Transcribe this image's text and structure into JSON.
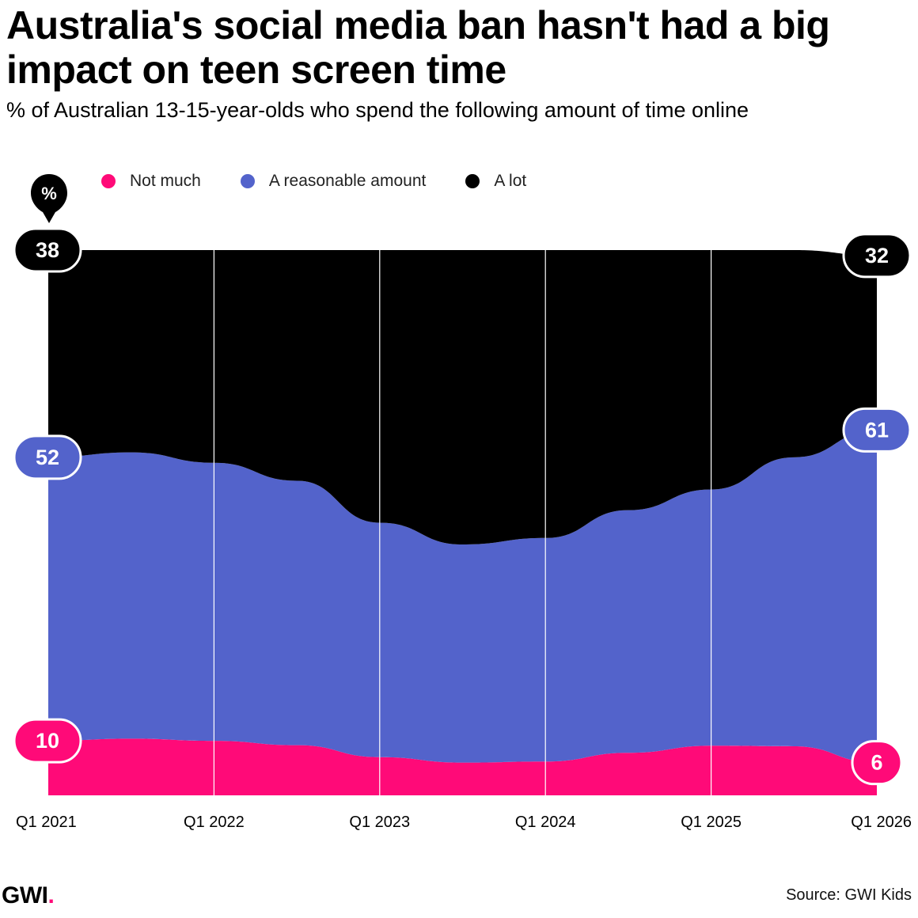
{
  "title": "Australia's social media ban hasn't had a big impact on teen screen time",
  "subtitle": "% of Australian 13-15-year-olds who spend the following amount of time online",
  "unit_badge": "%",
  "colors": {
    "not_much": "#ff0a78",
    "reasonable": "#5363cb",
    "a_lot": "#000000",
    "gridline": "#ffffff"
  },
  "chart_data": {
    "type": "area",
    "stacked": true,
    "ylim": [
      0,
      100
    ],
    "categories": [
      "Q1 2021",
      "Q1 2022",
      "Q1 2023",
      "Q1 2024",
      "Q1 2025",
      "Q1 2026"
    ],
    "x": [
      0,
      0.5,
      1,
      1.5,
      2,
      2.5,
      3,
      3.5,
      4,
      4.5,
      5
    ],
    "series": [
      {
        "key": "not_much",
        "name": "Not much",
        "values": [
          10,
          10.4,
          10,
          9.2,
          7.0,
          6.0,
          6.2,
          7.8,
          9.1,
          9.0,
          6.0
        ]
      },
      {
        "key": "reasonable",
        "name": "A reasonable amount",
        "values": [
          52,
          52.5,
          51,
          48.5,
          43,
          40,
          41,
          44.5,
          47,
          53,
          61
        ]
      },
      {
        "key": "a_lot",
        "name": "A lot",
        "values": [
          38,
          37.1,
          39,
          42.3,
          50,
          54,
          52.8,
          47.7,
          43.9,
          38,
          32
        ]
      }
    ],
    "start_labels": [
      {
        "key": "a_lot",
        "text": "38"
      },
      {
        "key": "reasonable",
        "text": "52"
      },
      {
        "key": "not_much",
        "text": "10"
      }
    ],
    "end_labels": [
      {
        "key": "a_lot",
        "text": "32"
      },
      {
        "key": "reasonable",
        "text": "61"
      },
      {
        "key": "not_much",
        "text": "6"
      }
    ]
  },
  "footer": {
    "logo": "GWI",
    "logo_dot": ".",
    "source": "Source: GWI Kids"
  }
}
